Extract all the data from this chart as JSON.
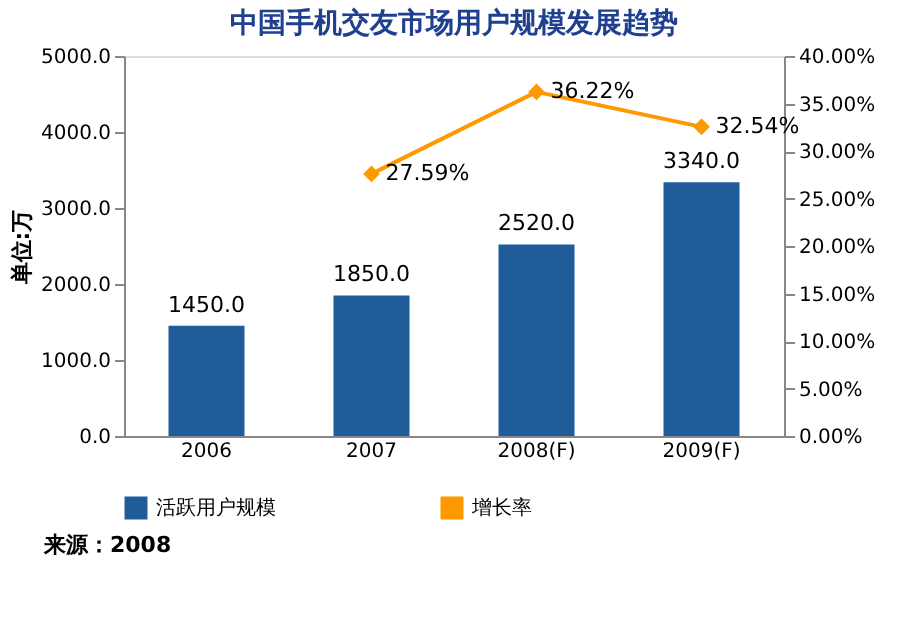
{
  "chart_data": {
    "type": "bar",
    "title": "中国手机交友市场用户规模发展趋势",
    "ylabel": "单位:万",
    "categories": [
      "2006",
      "2007",
      "2008(F)",
      "2009(F)"
    ],
    "series": [
      {
        "name": "活跃用户规模",
        "color": "#1f5c99",
        "values": [
          1450.0,
          1850.0,
          2520.0,
          3340.0
        ],
        "value_labels": [
          "1450.0",
          "1850.0",
          "2520.0",
          "3340.0"
        ]
      },
      {
        "name": "增长率",
        "type": "line",
        "axis": "y2",
        "color": "#ff9900",
        "marker": "diamond",
        "values": [
          null,
          27.59,
          36.22,
          32.54
        ],
        "value_labels": [
          null,
          "27.59%",
          "36.22%",
          "32.54%"
        ]
      }
    ],
    "ylim": [
      0,
      5000
    ],
    "yticks": [
      {
        "value": 0,
        "label": "0.0"
      },
      {
        "value": 1000,
        "label": "1000.0"
      },
      {
        "value": 2000,
        "label": "2000.0"
      },
      {
        "value": 3000,
        "label": "3000.0"
      },
      {
        "value": 4000,
        "label": "4000.0"
      },
      {
        "value": 5000,
        "label": "5000.0"
      }
    ],
    "y2lim": [
      0,
      40
    ],
    "y2ticks": [
      {
        "value": 0,
        "label": "0.00%"
      },
      {
        "value": 5,
        "label": "5.00%"
      },
      {
        "value": 10,
        "label": "10.00%"
      },
      {
        "value": 15,
        "label": "15.00%"
      },
      {
        "value": 20,
        "label": "20.00%"
      },
      {
        "value": 25,
        "label": "25.00%"
      },
      {
        "value": 30,
        "label": "30.00%"
      },
      {
        "value": 35,
        "label": "35.00%"
      },
      {
        "value": 40,
        "label": "40.00%"
      }
    ],
    "legend": "bottom",
    "grid": false,
    "annotations": [
      "来源：2008"
    ]
  }
}
